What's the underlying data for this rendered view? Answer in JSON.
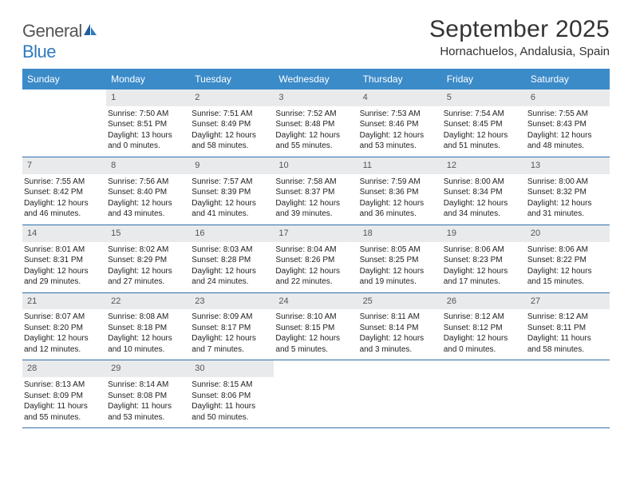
{
  "brand": {
    "part1": "General",
    "part2": "Blue"
  },
  "title": "September 2025",
  "location": "Hornachuelos, Andalusia, Spain",
  "colors": {
    "header_bg": "#3b8bc9",
    "header_text": "#ffffff",
    "daynum_bg": "#e9eaec",
    "week_divider": "#2f6fa8",
    "brand_gray": "#555555",
    "brand_blue": "#2f7bbf",
    "page_bg": "#ffffff",
    "body_text": "#222222"
  },
  "typography": {
    "title_fontsize": 30,
    "location_fontsize": 15,
    "weekday_fontsize": 12,
    "cell_fontsize": 10,
    "daynum_fontsize": 11
  },
  "weekdays": [
    "Sunday",
    "Monday",
    "Tuesday",
    "Wednesday",
    "Thursday",
    "Friday",
    "Saturday"
  ],
  "weeks": [
    [
      null,
      {
        "n": "1",
        "sr": "Sunrise: 7:50 AM",
        "ss": "Sunset: 8:51 PM",
        "dl": "Daylight: 13 hours and 0 minutes."
      },
      {
        "n": "2",
        "sr": "Sunrise: 7:51 AM",
        "ss": "Sunset: 8:49 PM",
        "dl": "Daylight: 12 hours and 58 minutes."
      },
      {
        "n": "3",
        "sr": "Sunrise: 7:52 AM",
        "ss": "Sunset: 8:48 PM",
        "dl": "Daylight: 12 hours and 55 minutes."
      },
      {
        "n": "4",
        "sr": "Sunrise: 7:53 AM",
        "ss": "Sunset: 8:46 PM",
        "dl": "Daylight: 12 hours and 53 minutes."
      },
      {
        "n": "5",
        "sr": "Sunrise: 7:54 AM",
        "ss": "Sunset: 8:45 PM",
        "dl": "Daylight: 12 hours and 51 minutes."
      },
      {
        "n": "6",
        "sr": "Sunrise: 7:55 AM",
        "ss": "Sunset: 8:43 PM",
        "dl": "Daylight: 12 hours and 48 minutes."
      }
    ],
    [
      {
        "n": "7",
        "sr": "Sunrise: 7:55 AM",
        "ss": "Sunset: 8:42 PM",
        "dl": "Daylight: 12 hours and 46 minutes."
      },
      {
        "n": "8",
        "sr": "Sunrise: 7:56 AM",
        "ss": "Sunset: 8:40 PM",
        "dl": "Daylight: 12 hours and 43 minutes."
      },
      {
        "n": "9",
        "sr": "Sunrise: 7:57 AM",
        "ss": "Sunset: 8:39 PM",
        "dl": "Daylight: 12 hours and 41 minutes."
      },
      {
        "n": "10",
        "sr": "Sunrise: 7:58 AM",
        "ss": "Sunset: 8:37 PM",
        "dl": "Daylight: 12 hours and 39 minutes."
      },
      {
        "n": "11",
        "sr": "Sunrise: 7:59 AM",
        "ss": "Sunset: 8:36 PM",
        "dl": "Daylight: 12 hours and 36 minutes."
      },
      {
        "n": "12",
        "sr": "Sunrise: 8:00 AM",
        "ss": "Sunset: 8:34 PM",
        "dl": "Daylight: 12 hours and 34 minutes."
      },
      {
        "n": "13",
        "sr": "Sunrise: 8:00 AM",
        "ss": "Sunset: 8:32 PM",
        "dl": "Daylight: 12 hours and 31 minutes."
      }
    ],
    [
      {
        "n": "14",
        "sr": "Sunrise: 8:01 AM",
        "ss": "Sunset: 8:31 PM",
        "dl": "Daylight: 12 hours and 29 minutes."
      },
      {
        "n": "15",
        "sr": "Sunrise: 8:02 AM",
        "ss": "Sunset: 8:29 PM",
        "dl": "Daylight: 12 hours and 27 minutes."
      },
      {
        "n": "16",
        "sr": "Sunrise: 8:03 AM",
        "ss": "Sunset: 8:28 PM",
        "dl": "Daylight: 12 hours and 24 minutes."
      },
      {
        "n": "17",
        "sr": "Sunrise: 8:04 AM",
        "ss": "Sunset: 8:26 PM",
        "dl": "Daylight: 12 hours and 22 minutes."
      },
      {
        "n": "18",
        "sr": "Sunrise: 8:05 AM",
        "ss": "Sunset: 8:25 PM",
        "dl": "Daylight: 12 hours and 19 minutes."
      },
      {
        "n": "19",
        "sr": "Sunrise: 8:06 AM",
        "ss": "Sunset: 8:23 PM",
        "dl": "Daylight: 12 hours and 17 minutes."
      },
      {
        "n": "20",
        "sr": "Sunrise: 8:06 AM",
        "ss": "Sunset: 8:22 PM",
        "dl": "Daylight: 12 hours and 15 minutes."
      }
    ],
    [
      {
        "n": "21",
        "sr": "Sunrise: 8:07 AM",
        "ss": "Sunset: 8:20 PM",
        "dl": "Daylight: 12 hours and 12 minutes."
      },
      {
        "n": "22",
        "sr": "Sunrise: 8:08 AM",
        "ss": "Sunset: 8:18 PM",
        "dl": "Daylight: 12 hours and 10 minutes."
      },
      {
        "n": "23",
        "sr": "Sunrise: 8:09 AM",
        "ss": "Sunset: 8:17 PM",
        "dl": "Daylight: 12 hours and 7 minutes."
      },
      {
        "n": "24",
        "sr": "Sunrise: 8:10 AM",
        "ss": "Sunset: 8:15 PM",
        "dl": "Daylight: 12 hours and 5 minutes."
      },
      {
        "n": "25",
        "sr": "Sunrise: 8:11 AM",
        "ss": "Sunset: 8:14 PM",
        "dl": "Daylight: 12 hours and 3 minutes."
      },
      {
        "n": "26",
        "sr": "Sunrise: 8:12 AM",
        "ss": "Sunset: 8:12 PM",
        "dl": "Daylight: 12 hours and 0 minutes."
      },
      {
        "n": "27",
        "sr": "Sunrise: 8:12 AM",
        "ss": "Sunset: 8:11 PM",
        "dl": "Daylight: 11 hours and 58 minutes."
      }
    ],
    [
      {
        "n": "28",
        "sr": "Sunrise: 8:13 AM",
        "ss": "Sunset: 8:09 PM",
        "dl": "Daylight: 11 hours and 55 minutes."
      },
      {
        "n": "29",
        "sr": "Sunrise: 8:14 AM",
        "ss": "Sunset: 8:08 PM",
        "dl": "Daylight: 11 hours and 53 minutes."
      },
      {
        "n": "30",
        "sr": "Sunrise: 8:15 AM",
        "ss": "Sunset: 8:06 PM",
        "dl": "Daylight: 11 hours and 50 minutes."
      },
      null,
      null,
      null,
      null
    ]
  ]
}
